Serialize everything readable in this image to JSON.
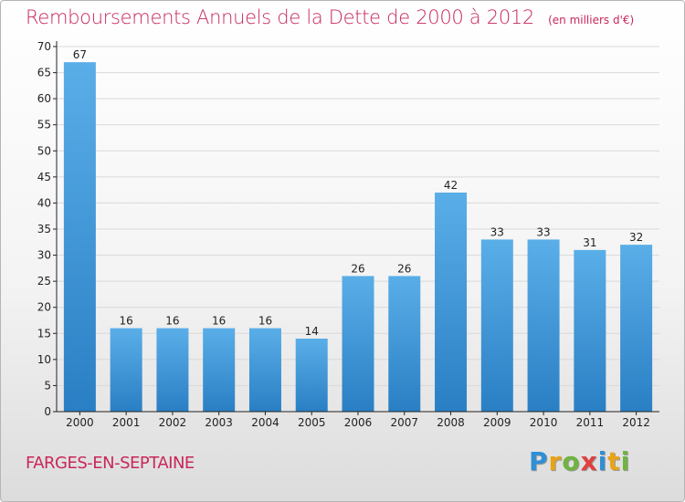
{
  "title": "Remboursements Annuels de la Dette de 2000 à 2012",
  "unit": "(en milliers d'€)",
  "town": "FARGES-EN-SEPTAINE",
  "logo": {
    "letters": [
      "P",
      "r",
      "o",
      "x",
      "i",
      "t",
      "i"
    ],
    "colors": [
      "#2f8fd6",
      "#e8a317",
      "#6fb43f",
      "#e04040",
      "#2f8fd6",
      "#e8a317",
      "#6fb43f"
    ]
  },
  "colors": {
    "bar_light": "#5aaee8",
    "bar_dark": "#2a7fc4",
    "axis": "#222222",
    "grid": "#d9d9d9",
    "text": "#222222",
    "accent": "#c8285a"
  },
  "chart_data": {
    "type": "bar",
    "categories": [
      "2000",
      "2001",
      "2002",
      "2003",
      "2004",
      "2005",
      "2006",
      "2007",
      "2008",
      "2009",
      "2010",
      "2011",
      "2012"
    ],
    "values": [
      67,
      16,
      16,
      16,
      16,
      14,
      26,
      26,
      42,
      33,
      33,
      31,
      32
    ],
    "ylim": [
      0,
      70
    ],
    "yticks": [
      0,
      5,
      10,
      15,
      20,
      25,
      30,
      35,
      40,
      45,
      50,
      55,
      60,
      65,
      70
    ],
    "grid": true,
    "xlabel": "",
    "ylabel": ""
  }
}
